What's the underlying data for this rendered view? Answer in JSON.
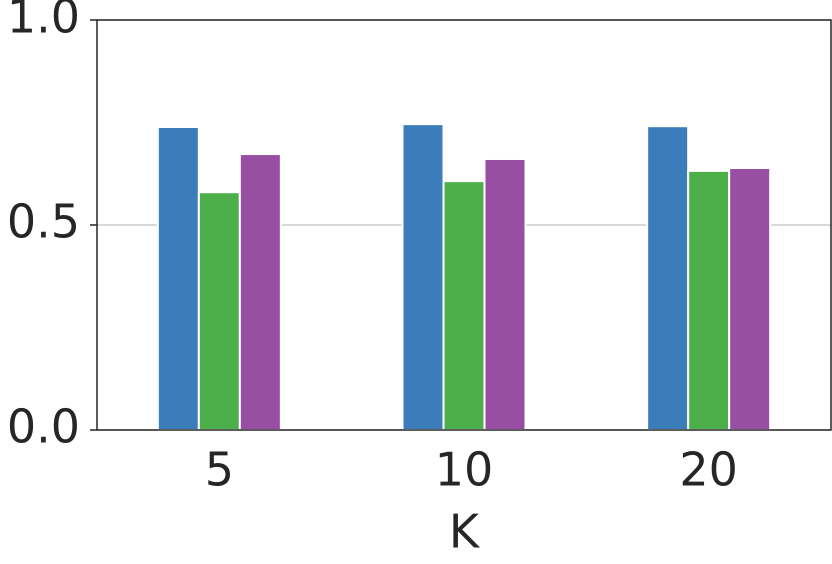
{
  "chart_data": {
    "type": "bar",
    "xlabel": "K",
    "categories": [
      "5",
      "10",
      "20"
    ],
    "series": [
      {
        "color": "#3a7dba",
        "values": [
          0.739,
          0.746,
          0.741
        ]
      },
      {
        "color": "#4daf4a",
        "values": [
          0.58,
          0.607,
          0.632
        ]
      },
      {
        "color": "#984ea3",
        "values": [
          0.673,
          0.661,
          0.639
        ]
      }
    ],
    "ylim": [
      0,
      1
    ],
    "yticks": [
      {
        "value": 0,
        "label": "0.0"
      },
      {
        "value": 0.5,
        "label": "0.5"
      },
      {
        "value": 1,
        "label": "1.0"
      }
    ],
    "grid": true
  }
}
